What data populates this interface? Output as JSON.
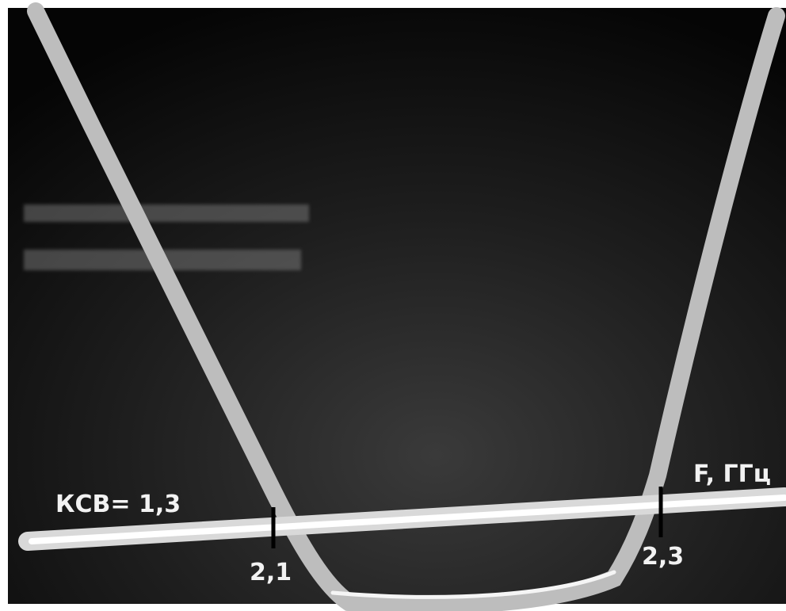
{
  "annotations": {
    "swr": "КСВ= 1,3",
    "axis_label": "F, ГГц",
    "marker_left": "2,1",
    "marker_right": "2,3"
  }
}
